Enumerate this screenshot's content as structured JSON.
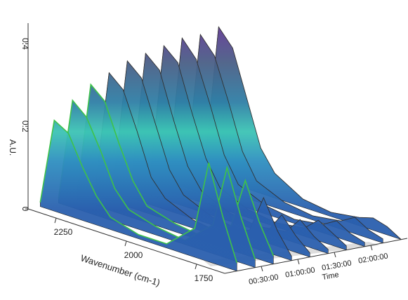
{
  "chart_data": {
    "type": "waterfall3d",
    "xlabel": "Wavenumber (cm-1)",
    "ylabel": "A.U.",
    "zlabel": "Time",
    "xlim": [
      2350,
      1650
    ],
    "xticks": [
      2250,
      2000,
      1750
    ],
    "ylim": [
      0,
      0.45
    ],
    "yticks": [
      0,
      0.2,
      0.4
    ],
    "zlim": [
      0,
      150
    ],
    "zticks": [
      {
        "value": 30,
        "label": "00:30:00"
      },
      {
        "value": 60,
        "label": "01:00:00"
      },
      {
        "value": 90,
        "label": "01:30:00"
      },
      {
        "value": 120,
        "label": "02:00:00"
      }
    ],
    "x": [
      2350,
      2300,
      2250,
      2200,
      2150,
      2100,
      2000,
      1900,
      1800,
      1750,
      1700,
      1650
    ],
    "series": [
      {
        "z": 10,
        "values": [
          0.01,
          0.22,
          0.2,
          0.13,
          0.07,
          0.03,
          0.01,
          0.01,
          0.07,
          0.24,
          0.12,
          0.02
        ]
      },
      {
        "z": 25,
        "values": [
          0.01,
          0.26,
          0.23,
          0.16,
          0.08,
          0.04,
          0.02,
          0.01,
          0.07,
          0.22,
          0.11,
          0.02
        ]
      },
      {
        "z": 40,
        "values": [
          0.01,
          0.29,
          0.26,
          0.17,
          0.09,
          0.04,
          0.02,
          0.01,
          0.06,
          0.18,
          0.09,
          0.02
        ]
      },
      {
        "z": 55,
        "values": [
          0.02,
          0.31,
          0.28,
          0.19,
          0.09,
          0.05,
          0.02,
          0.01,
          0.04,
          0.13,
          0.06,
          0.01
        ]
      },
      {
        "z": 70,
        "values": [
          0.02,
          0.33,
          0.3,
          0.2,
          0.1,
          0.05,
          0.02,
          0.01,
          0.03,
          0.08,
          0.04,
          0.01
        ]
      },
      {
        "z": 85,
        "values": [
          0.02,
          0.34,
          0.31,
          0.2,
          0.1,
          0.05,
          0.02,
          0.01,
          0.02,
          0.06,
          0.03,
          0.01
        ]
      },
      {
        "z": 100,
        "values": [
          0.02,
          0.35,
          0.32,
          0.21,
          0.11,
          0.05,
          0.02,
          0.01,
          0.02,
          0.05,
          0.03,
          0.01
        ]
      },
      {
        "z": 115,
        "values": [
          0.02,
          0.36,
          0.32,
          0.22,
          0.11,
          0.05,
          0.02,
          0.01,
          0.02,
          0.04,
          0.02,
          0.01
        ]
      },
      {
        "z": 130,
        "values": [
          0.02,
          0.36,
          0.32,
          0.22,
          0.11,
          0.05,
          0.02,
          0.01,
          0.02,
          0.04,
          0.02,
          0.01
        ]
      },
      {
        "z": 145,
        "values": [
          0.02,
          0.37,
          0.33,
          0.22,
          0.11,
          0.06,
          0.02,
          0.01,
          0.02,
          0.03,
          0.02,
          0.0
        ]
      }
    ]
  }
}
